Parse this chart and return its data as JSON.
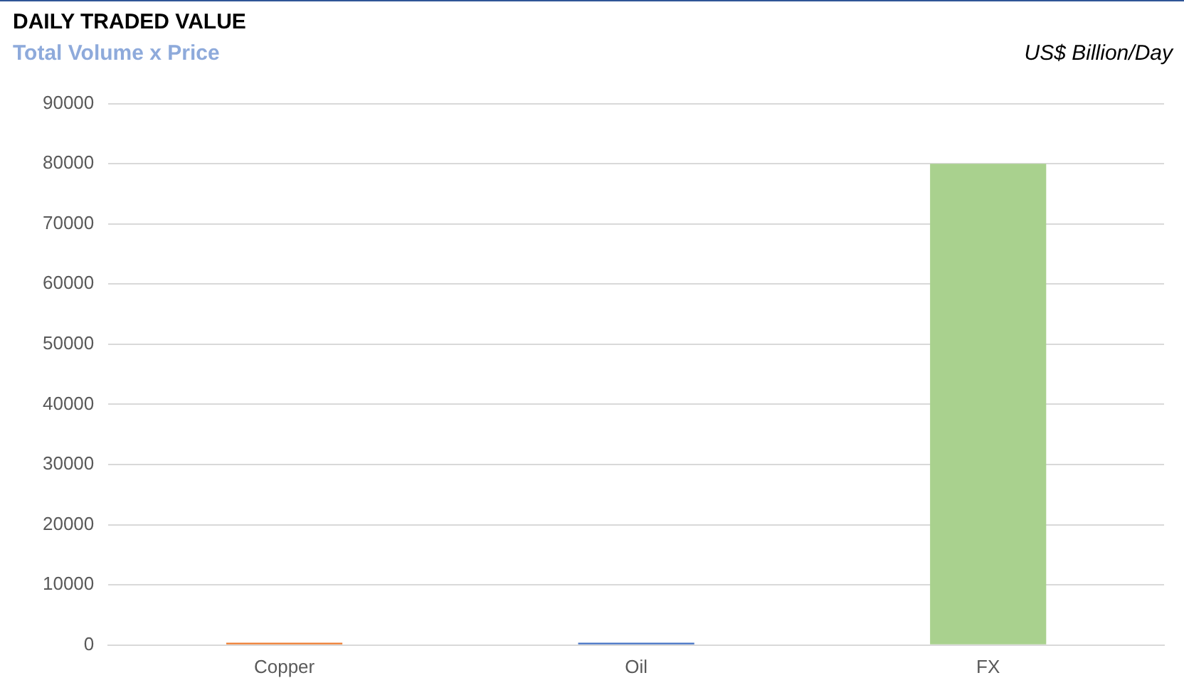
{
  "chart_data": {
    "type": "bar",
    "title": "DAILY TRADED VALUE",
    "subtitle": "Total Volume x Price",
    "annotations": [
      "US$ Billion/Day"
    ],
    "categories": [
      "Copper",
      "Oil",
      "FX"
    ],
    "values": [
      400,
      400,
      80000
    ],
    "colors": [
      "#ed7d31",
      "#4472c4",
      "#a9d18e"
    ],
    "ylim": [
      0,
      90000
    ],
    "yticks": [
      0,
      10000,
      20000,
      30000,
      40000,
      50000,
      60000,
      70000,
      80000,
      90000
    ],
    "grid": "y",
    "legend": false
  }
}
